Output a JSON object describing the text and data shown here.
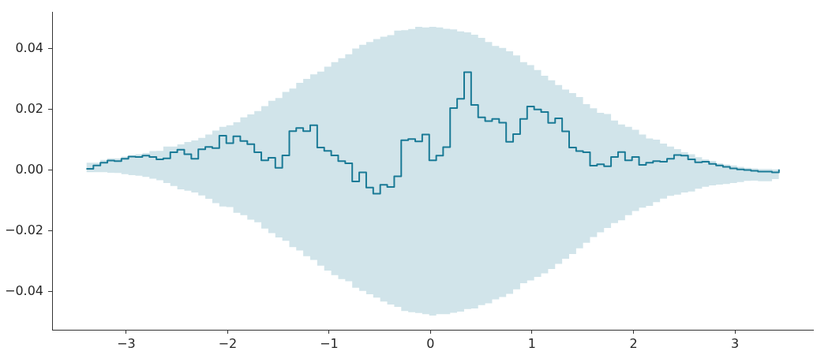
{
  "chart_data": {
    "type": "step",
    "x": [
      -3.392,
      -3.323,
      -3.254,
      -3.185,
      -3.116,
      -3.047,
      -2.978,
      -2.909,
      -2.84,
      -2.771,
      -2.702,
      -2.634,
      -2.565,
      -2.496,
      -2.427,
      -2.358,
      -2.289,
      -2.22,
      -2.151,
      -2.082,
      -2.013,
      -1.944,
      -1.875,
      -1.806,
      -1.737,
      -1.668,
      -1.599,
      -1.53,
      -1.461,
      -1.392,
      -1.324,
      -1.255,
      -1.186,
      -1.117,
      -1.048,
      -0.979,
      -0.91,
      -0.841,
      -0.772,
      -0.703,
      -0.634,
      -0.565,
      -0.496,
      -0.427,
      -0.358,
      -0.289,
      -0.22,
      -0.151,
      -0.082,
      -0.013,
      0.056,
      0.124,
      0.193,
      0.262,
      0.331,
      0.4,
      0.469,
      0.538,
      0.607,
      0.676,
      0.745,
      0.814,
      0.883,
      0.952,
      1.021,
      1.09,
      1.159,
      1.228,
      1.297,
      1.366,
      1.435,
      1.503,
      1.572,
      1.641,
      1.71,
      1.779,
      1.848,
      1.917,
      1.986,
      2.055,
      2.124,
      2.193,
      2.262,
      2.331,
      2.4,
      2.469,
      2.538,
      2.607,
      2.676,
      2.745,
      2.814,
      2.882,
      2.951,
      3.02,
      3.089,
      3.158,
      3.227,
      3.296,
      3.365,
      3.434
    ],
    "series": [
      {
        "color": "#1a7a96",
        "values": [
          0.0005,
          0.0016,
          0.0025,
          0.0032,
          0.003,
          0.0038,
          0.0045,
          0.0044,
          0.0048,
          0.0044,
          0.0036,
          0.0039,
          0.0059,
          0.0068,
          0.0053,
          0.0038,
          0.0069,
          0.0077,
          0.0073,
          0.0114,
          0.0089,
          0.0112,
          0.0096,
          0.0086,
          0.0059,
          0.0033,
          0.0041,
          0.0008,
          0.0049,
          0.0129,
          0.0139,
          0.0129,
          0.0148,
          0.0075,
          0.0064,
          0.0049,
          0.003,
          0.0023,
          -0.0037,
          -0.0007,
          -0.0057,
          -0.0077,
          -0.0048,
          -0.0055,
          -0.002,
          0.0099,
          0.0103,
          0.0095,
          0.0118,
          0.0033,
          0.0048,
          0.0076,
          0.0205,
          0.0235,
          0.0323,
          0.0215,
          0.0174,
          0.0162,
          0.0169,
          0.0157,
          0.0094,
          0.0119,
          0.0169,
          0.021,
          0.02,
          0.0192,
          0.0156,
          0.0171,
          0.0128,
          0.0075,
          0.0063,
          0.0059,
          0.0015,
          0.002,
          0.0013,
          0.0044,
          0.006,
          0.0033,
          0.0044,
          0.0018,
          0.0025,
          0.003,
          0.0028,
          0.0038,
          0.005,
          0.0048,
          0.0036,
          0.0026,
          0.0028,
          0.0021,
          0.0016,
          0.0011,
          0.0006,
          0.0003,
          0.0001,
          -0.0002,
          -0.0004,
          -0.0004,
          -0.0007,
          0.0003
        ],
        "upper": [
          0.0025,
          0.0025,
          0.0034,
          0.0039,
          0.0039,
          0.0045,
          0.0049,
          0.0053,
          0.0057,
          0.0063,
          0.0064,
          0.0078,
          0.0078,
          0.0085,
          0.0093,
          0.0098,
          0.0107,
          0.0118,
          0.0131,
          0.0143,
          0.0148,
          0.0158,
          0.0174,
          0.0184,
          0.0195,
          0.0211,
          0.0229,
          0.0238,
          0.0258,
          0.0269,
          0.0288,
          0.0301,
          0.0316,
          0.0325,
          0.0341,
          0.0356,
          0.0369,
          0.0382,
          0.0401,
          0.0413,
          0.0422,
          0.0432,
          0.044,
          0.0445,
          0.046,
          0.0461,
          0.0465,
          0.0472,
          0.047,
          0.0472,
          0.047,
          0.0466,
          0.0464,
          0.0457,
          0.0454,
          0.0446,
          0.0436,
          0.0422,
          0.0409,
          0.0403,
          0.0392,
          0.0378,
          0.0356,
          0.0346,
          0.033,
          0.0311,
          0.0296,
          0.0281,
          0.0266,
          0.0254,
          0.0241,
          0.0218,
          0.0204,
          0.0189,
          0.0185,
          0.0164,
          0.0151,
          0.0143,
          0.0133,
          0.0118,
          0.0105,
          0.0101,
          0.0088,
          0.0078,
          0.007,
          0.0059,
          0.0053,
          0.0043,
          0.0036,
          0.0031,
          0.0023,
          0.0019,
          0.0016,
          0.0011,
          0.0008,
          0.0006,
          0.0004,
          0.0004,
          0.0003,
          0.0003
        ],
        "lower": [
          -0.0006,
          -0.0006,
          -0.0006,
          -0.0008,
          -0.0009,
          -0.0013,
          -0.0016,
          -0.0018,
          -0.0022,
          -0.0028,
          -0.0033,
          -0.0042,
          -0.0052,
          -0.0063,
          -0.0067,
          -0.0073,
          -0.0083,
          -0.0094,
          -0.0108,
          -0.0119,
          -0.0121,
          -0.014,
          -0.0148,
          -0.0163,
          -0.0171,
          -0.0192,
          -0.0207,
          -0.0221,
          -0.0232,
          -0.0253,
          -0.0264,
          -0.0283,
          -0.0295,
          -0.0314,
          -0.033,
          -0.0345,
          -0.0358,
          -0.0365,
          -0.0387,
          -0.0397,
          -0.0408,
          -0.0419,
          -0.0432,
          -0.0442,
          -0.045,
          -0.0463,
          -0.0467,
          -0.047,
          -0.0474,
          -0.0478,
          -0.0474,
          -0.0474,
          -0.0469,
          -0.0465,
          -0.0457,
          -0.0455,
          -0.0444,
          -0.0438,
          -0.0425,
          -0.0417,
          -0.0407,
          -0.0392,
          -0.0372,
          -0.0363,
          -0.0351,
          -0.0339,
          -0.0325,
          -0.0308,
          -0.0291,
          -0.0276,
          -0.0257,
          -0.0239,
          -0.022,
          -0.0204,
          -0.019,
          -0.0174,
          -0.0165,
          -0.0148,
          -0.0134,
          -0.0123,
          -0.0117,
          -0.0105,
          -0.0093,
          -0.0084,
          -0.008,
          -0.0073,
          -0.007,
          -0.0061,
          -0.0054,
          -0.005,
          -0.0047,
          -0.0045,
          -0.0042,
          -0.0039,
          -0.0035,
          -0.0034,
          -0.0036,
          -0.0036,
          -0.0029,
          -0.0029
        ]
      }
    ],
    "xlim": [
      -3.73,
      3.77
    ],
    "ylim": [
      -0.0525,
      0.052
    ],
    "xticks": [
      {
        "value": -3,
        "label": "−3"
      },
      {
        "value": -2,
        "label": "−2"
      },
      {
        "value": -1,
        "label": "−1"
      },
      0,
      1,
      2,
      3
    ],
    "yticks": [
      {
        "value": -0.04,
        "label": "−0.04"
      },
      {
        "value": -0.02,
        "label": "−0.02"
      },
      {
        "value": 0,
        "label": "0.00"
      },
      {
        "value": 0.02,
        "label": "0.02"
      },
      {
        "value": 0.04,
        "label": "0.04"
      }
    ],
    "grid": false,
    "legend": false
  }
}
